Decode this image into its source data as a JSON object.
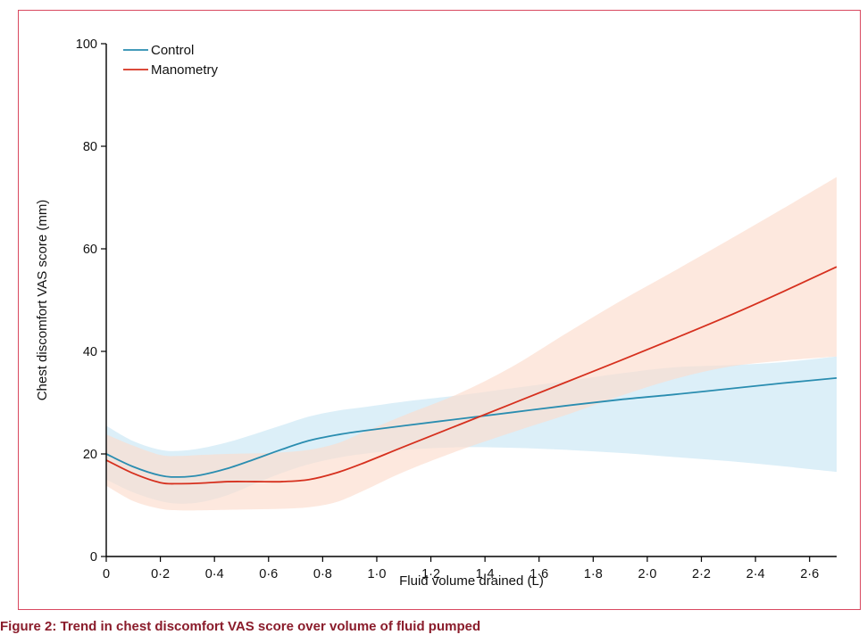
{
  "chart_data": {
    "type": "line",
    "xlabel": "Fluid volume drained (L)",
    "ylabel": "Chest discomfort VAS score (mm)",
    "xlim": [
      0,
      2.7
    ],
    "ylim": [
      0,
      100
    ],
    "x_ticks": [
      0,
      0.2,
      0.4,
      0.6,
      0.8,
      1.0,
      1.2,
      1.4,
      1.6,
      1.8,
      2.0,
      2.2,
      2.4,
      2.6
    ],
    "x_tick_labels": [
      "0",
      "0·2",
      "0·4",
      "0·6",
      "0·8",
      "1·0",
      "1·2",
      "1·4",
      "1·6",
      "1·8",
      "2·0",
      "2·2",
      "2·4",
      "2·6"
    ],
    "y_ticks": [
      0,
      20,
      40,
      60,
      80,
      100
    ],
    "y_tick_labels": [
      "0",
      "20",
      "40",
      "60",
      "80",
      "100"
    ],
    "grid": false,
    "legend_position": "top-left",
    "series": [
      {
        "name": "Control",
        "color": "#2a8db0",
        "band_color": "#c9e7f5",
        "x": [
          0,
          0.1,
          0.2,
          0.27,
          0.35,
          0.45,
          0.55,
          0.65,
          0.75,
          0.85,
          0.95,
          1.1,
          1.3,
          1.5,
          1.7,
          1.9,
          2.1,
          2.3,
          2.5,
          2.7
        ],
        "y": [
          20,
          17.5,
          15.8,
          15.5,
          15.9,
          17.2,
          19.0,
          20.9,
          22.6,
          23.7,
          24.5,
          25.5,
          26.8,
          28.1,
          29.4,
          30.6,
          31.6,
          32.7,
          33.8,
          34.8
        ],
        "lower": [
          15.0,
          12.5,
          10.8,
          10.3,
          10.6,
          12.0,
          14.2,
          16.3,
          18.0,
          19.2,
          20.0,
          20.8,
          21.3,
          21.2,
          20.8,
          20.2,
          19.4,
          18.6,
          17.6,
          16.5
        ],
        "upper": [
          25.5,
          22.5,
          20.8,
          20.6,
          21.1,
          22.3,
          23.9,
          25.6,
          27.3,
          28.4,
          29.1,
          30.2,
          31.4,
          32.8,
          34.2,
          35.7,
          36.9,
          37.3,
          37.9,
          39.0
        ]
      },
      {
        "name": "Manometry",
        "color": "#d6301e",
        "band_color": "#fcdccd",
        "x": [
          0,
          0.1,
          0.2,
          0.27,
          0.35,
          0.45,
          0.55,
          0.65,
          0.75,
          0.85,
          0.95,
          1.1,
          1.3,
          1.5,
          1.7,
          1.9,
          2.1,
          2.3,
          2.5,
          2.7
        ],
        "y": [
          18.8,
          16.2,
          14.4,
          14.2,
          14.3,
          14.6,
          14.6,
          14.6,
          15.0,
          16.3,
          18.2,
          21.4,
          25.6,
          29.8,
          34.0,
          38.2,
          42.5,
          46.9,
          51.6,
          56.5
        ],
        "lower": [
          13.8,
          10.8,
          9.3,
          9.0,
          9.0,
          9.1,
          9.2,
          9.3,
          9.6,
          10.6,
          12.8,
          16.5,
          20.6,
          24.2,
          27.6,
          31.3,
          34.6,
          37.0,
          38.2,
          39.0
        ],
        "upper": [
          23.8,
          21.6,
          19.8,
          19.6,
          19.8,
          20.0,
          20.1,
          20.3,
          20.8,
          22.0,
          24.2,
          27.5,
          31.7,
          37.0,
          43.5,
          49.8,
          55.7,
          61.7,
          67.8,
          74.0
        ]
      }
    ]
  },
  "caption": "Figure 2: Trend in chest discomfort VAS score over volume of fluid pumped"
}
